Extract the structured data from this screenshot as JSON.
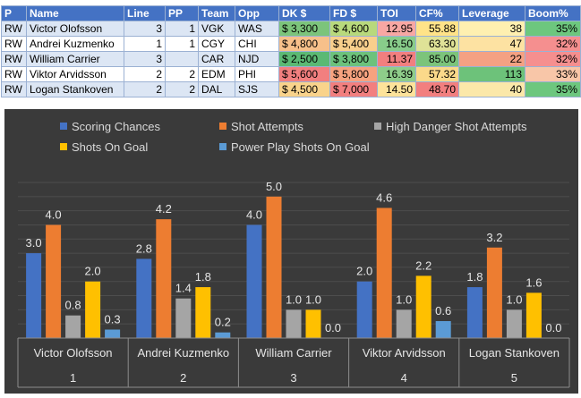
{
  "table": {
    "headers": [
      "P",
      "Name",
      "Line",
      "PP",
      "Team",
      "Opp",
      "DK $",
      "FD $",
      "TOI",
      "CF%",
      "Leverage",
      "Boom%"
    ],
    "rows": [
      {
        "pos": "RW",
        "name": "Victor Olofsson",
        "line": "3",
        "pp": "1",
        "team": "VGK",
        "opp": "WAS",
        "dk": "$ 3,300",
        "fd": "$ 4,600",
        "toi": "12.95",
        "cf": "55.88",
        "leverage": "38",
        "boom": "35%",
        "colors": {
          "dk": "#7cc47b",
          "fd": "#b8d97c",
          "toi": "#f8a7a3",
          "cf": "#ffe388",
          "leverage": "#fff0b0",
          "boom": "#6dc77e"
        }
      },
      {
        "pos": "RW",
        "name": "Andrei Kuzmenko",
        "line": "1",
        "pp": "1",
        "team": "CGY",
        "opp": "CHI",
        "dk": "$ 4,800",
        "fd": "$ 5,400",
        "toi": "16.50",
        "cf": "63.30",
        "leverage": "47",
        "boom": "32%",
        "colors": {
          "dk": "#f7c08a",
          "fd": "#f8cf8c",
          "toi": "#88cc8a",
          "cf": "#dfe297",
          "leverage": "#fde2a2",
          "boom": "#f58f8f"
        }
      },
      {
        "pos": "RW",
        "name": "William Carrier",
        "line": "3",
        "pp": "",
        "team": "CAR",
        "opp": "NJD",
        "dk": "$ 2,500",
        "fd": "$ 3,800",
        "toi": "11.37",
        "cf": "85.00",
        "leverage": "22",
        "boom": "32%",
        "colors": {
          "dk": "#5bb974",
          "fd": "#6cc27c",
          "toi": "#f27f7f",
          "cf": "#7cc47b",
          "leverage": "#f4a183",
          "boom": "#f58f8f"
        }
      },
      {
        "pos": "RW",
        "name": "Viktor Arvidsson",
        "line": "2",
        "pp": "2",
        "team": "EDM",
        "opp": "PHI",
        "dk": "$ 5,600",
        "fd": "$ 5,800",
        "toi": "16.39",
        "cf": "57.32",
        "leverage": "113",
        "boom": "33%",
        "colors": {
          "dk": "#f27f7f",
          "fd": "#f7a27f",
          "toi": "#8ecd8a",
          "cf": "#fbd98a",
          "leverage": "#6dc27a",
          "boom": "#f8c6a8"
        }
      },
      {
        "pos": "RW",
        "name": "Logan Stankoven",
        "line": "2",
        "pp": "2",
        "team": "DAL",
        "opp": "SJS",
        "dk": "$ 4,500",
        "fd": "$ 7,000",
        "toi": "14.50",
        "cf": "48.70",
        "leverage": "40",
        "boom": "35%",
        "colors": {
          "dk": "#f9d38b",
          "fd": "#f27f7f",
          "toi": "#fde39a",
          "cf": "#f27f7f",
          "leverage": "#fbe8a9",
          "boom": "#6dc77e"
        }
      }
    ]
  },
  "chart_data": {
    "type": "bar",
    "categories": [
      "Victor Olofsson",
      "Andrei Kuzmenko",
      "William Carrier",
      "Viktor Arvidsson",
      "Logan Stankoven"
    ],
    "category_numbers": [
      "1",
      "2",
      "3",
      "4",
      "5"
    ],
    "series": [
      {
        "name": "Scoring Chances",
        "color": "#4472c4",
        "values": [
          3.0,
          2.8,
          4.0,
          2.0,
          1.8
        ]
      },
      {
        "name": "Shot Attempts",
        "color": "#ed7d31",
        "values": [
          4.0,
          4.2,
          5.0,
          4.6,
          3.2
        ]
      },
      {
        "name": "High Danger Shot Attempts",
        "color": "#a5a5a5",
        "values": [
          0.8,
          1.4,
          1.0,
          1.0,
          1.0
        ]
      },
      {
        "name": "Shots On Goal",
        "color": "#ffc000",
        "values": [
          2.0,
          1.8,
          1.0,
          2.2,
          1.6
        ]
      },
      {
        "name": "Power Play Shots On Goal",
        "color": "#5b9bd5",
        "values": [
          0.3,
          0.2,
          0.0,
          0.6,
          0.0
        ]
      }
    ],
    "ylim": [
      0,
      5.5
    ],
    "grid": true,
    "legend_position": "top",
    "background": "#3a3a3a"
  }
}
